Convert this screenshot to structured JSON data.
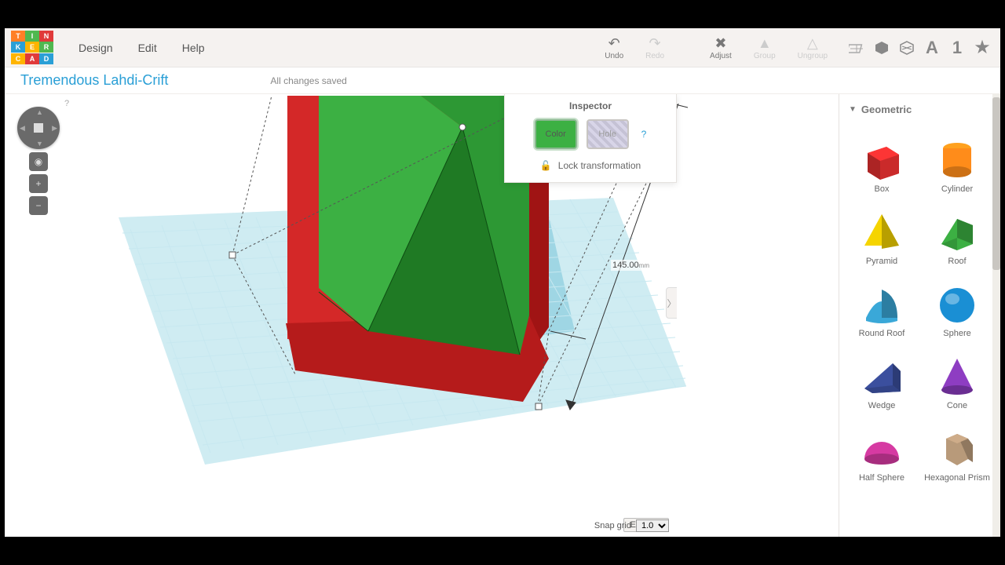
{
  "logo_tiles": [
    {
      "t": "T",
      "c": "#ff7f27"
    },
    {
      "t": "I",
      "c": "#4fb84f"
    },
    {
      "t": "N",
      "c": "#e03a3a"
    },
    {
      "t": "K",
      "c": "#2a9fd6"
    },
    {
      "t": "E",
      "c": "#ffb400"
    },
    {
      "t": "R",
      "c": "#4fb84f"
    },
    {
      "t": "C",
      "c": "#ffb400"
    },
    {
      "t": "A",
      "c": "#e03a3a"
    },
    {
      "t": "D",
      "c": "#2a9fd6"
    }
  ],
  "menu": {
    "design": "Design",
    "edit": "Edit",
    "help": "Help"
  },
  "toolbar": {
    "undo": "Undo",
    "redo": "Redo",
    "adjust": "Adjust",
    "group": "Group",
    "ungroup": "Ungroup"
  },
  "project_title": "Tremendous Lahdi-Crift",
  "save_status": "All changes saved",
  "inspector": {
    "title": "Inspector",
    "color_label": "Color",
    "hole_label": "Hole",
    "lock_label": "Lock transformation",
    "help": "?"
  },
  "dimension": {
    "value": "145.00",
    "unit": "mm"
  },
  "grid": {
    "edit_label": "Edit grid",
    "snap_label": "Snap grid",
    "snap_value": "1.0"
  },
  "panel": {
    "category": "Geometric",
    "shapes": [
      {
        "name": "Box"
      },
      {
        "name": "Cylinder"
      },
      {
        "name": "Pyramid"
      },
      {
        "name": "Roof"
      },
      {
        "name": "Round Roof"
      },
      {
        "name": "Sphere"
      },
      {
        "name": "Wedge"
      },
      {
        "name": "Cone"
      },
      {
        "name": "Half Sphere"
      },
      {
        "name": "Hexagonal Prism"
      }
    ]
  },
  "colors": {
    "red_shape_light": "#d42828",
    "red_shape_dark": "#a01414",
    "green_shape_light": "#3cb043",
    "green_shape_dark": "#1f7a24",
    "green_shape_mid": "#2d9834",
    "workplane": "#a7dce8",
    "workplane_select": "#78c5d8",
    "grid_line": "#c7e8f0",
    "box_color": "#e53030",
    "cylinder_color": "#ff8c1a",
    "pyramid_color": "#f5d400",
    "roof_color": "#3cb043",
    "roundroof_color": "#3aa8d8",
    "sphere_color": "#1a8fd4",
    "wedge_color": "#3b4f9e",
    "cone_color": "#8e3dc2",
    "halfsphere_color": "#d63aa2",
    "hexprism_color": "#b89a7a"
  }
}
